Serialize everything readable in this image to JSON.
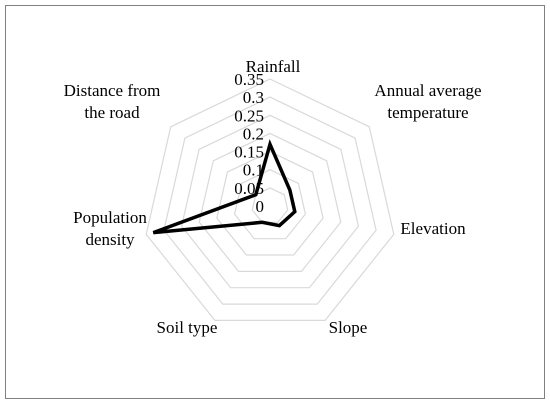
{
  "chart_data": {
    "type": "radar",
    "categories": [
      "Rainfall",
      "Annual average temperature",
      "Elevation",
      "Slope",
      "Soil type",
      "Population density",
      "Distance from the road"
    ],
    "category_label_lines": [
      [
        "Rainfall"
      ],
      [
        "Annual average",
        "temperature"
      ],
      [
        "Elevation"
      ],
      [
        "Slope"
      ],
      [
        "Soil type"
      ],
      [
        "Population",
        "density"
      ],
      [
        "Distance from",
        "the road"
      ]
    ],
    "values": [
      0.17,
      0.07,
      0.07,
      0.06,
      0.05,
      0.33,
      0.05
    ],
    "rlim": [
      0,
      0.35
    ],
    "ticks": [
      0,
      0.05,
      0.1,
      0.15,
      0.2,
      0.25,
      0.3,
      0.35
    ],
    "tick_labels": [
      "0",
      "0.05",
      "0.1",
      "0.15",
      "0.2",
      "0.25",
      "0.3",
      "0.35"
    ],
    "grid": true,
    "colors": {
      "series": "#000000",
      "grid": "#d9d9d9"
    }
  }
}
